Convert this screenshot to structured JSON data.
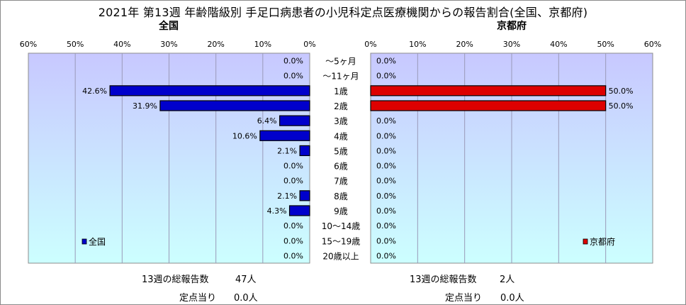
{
  "title": "2021年 第13週 年齢階級別 手足口病患者の小児科定点医療機関からの報告割合(全国、京都府)",
  "left_panel": {
    "subtitle": "全国",
    "legend": "全国",
    "total_label": "13週の総報告数",
    "total_value": "47人",
    "per_site_label": "定点当り",
    "per_site_value": "0.0人"
  },
  "right_panel": {
    "subtitle": "京都府",
    "legend": "京都府",
    "total_label": "13週の総報告数",
    "total_value": "2人",
    "per_site_label": "定点当り",
    "per_site_value": "0.0人"
  },
  "colors": {
    "national": "#0000cc",
    "kyoto": "#dd0000",
    "plot_bg_top": "#c8c8ff",
    "plot_bg_bottom": "#ccffff"
  },
  "chart_data": [
    {
      "type": "bar",
      "orientation": "horizontal",
      "direction": "right-to-left",
      "title": "全国",
      "categories": [
        "〜5ヶ月",
        "〜11ヶ月",
        "1歳",
        "2歳",
        "3歳",
        "4歳",
        "5歳",
        "6歳",
        "7歳",
        "8歳",
        "9歳",
        "10〜14歳",
        "15〜19歳",
        "20歳以上"
      ],
      "series": [
        {
          "name": "全国",
          "values": [
            0.0,
            0.0,
            42.6,
            31.9,
            6.4,
            10.6,
            2.1,
            0.0,
            0.0,
            2.1,
            4.3,
            0.0,
            0.0,
            0.0
          ]
        }
      ],
      "data_labels": [
        "0.0%",
        "0.0%",
        "42.6%",
        "31.9%",
        "6.4%",
        "10.6%",
        "2.1%",
        "0.0%",
        "0.0%",
        "2.1%",
        "4.3%",
        "0.0%",
        "0.0%",
        "0.0%"
      ],
      "xlim": [
        0,
        60
      ],
      "ticks": [
        "60%",
        "50%",
        "40%",
        "30%",
        "20%",
        "10%",
        "0%"
      ],
      "grid": true,
      "legend_position": "bottom-left"
    },
    {
      "type": "bar",
      "orientation": "horizontal",
      "direction": "left-to-right",
      "title": "京都府",
      "categories": [
        "〜5ヶ月",
        "〜11ヶ月",
        "1歳",
        "2歳",
        "3歳",
        "4歳",
        "5歳",
        "6歳",
        "7歳",
        "8歳",
        "9歳",
        "10〜14歳",
        "15〜19歳",
        "20歳以上"
      ],
      "series": [
        {
          "name": "京都府",
          "values": [
            0.0,
            0.0,
            50.0,
            50.0,
            0.0,
            0.0,
            0.0,
            0.0,
            0.0,
            0.0,
            0.0,
            0.0,
            0.0,
            0.0
          ]
        }
      ],
      "data_labels": [
        "0.0%",
        "0.0%",
        "50.0%",
        "50.0%",
        "0.0%",
        "0.0%",
        "0.0%",
        "0.0%",
        "0.0%",
        "0.0%",
        "0.0%",
        "0.0%",
        "0.0%",
        "0.0%"
      ],
      "xlim": [
        0,
        60
      ],
      "ticks": [
        "0%",
        "10%",
        "20%",
        "30%",
        "40%",
        "50%",
        "60%"
      ],
      "grid": true,
      "legend_position": "bottom-right"
    }
  ]
}
